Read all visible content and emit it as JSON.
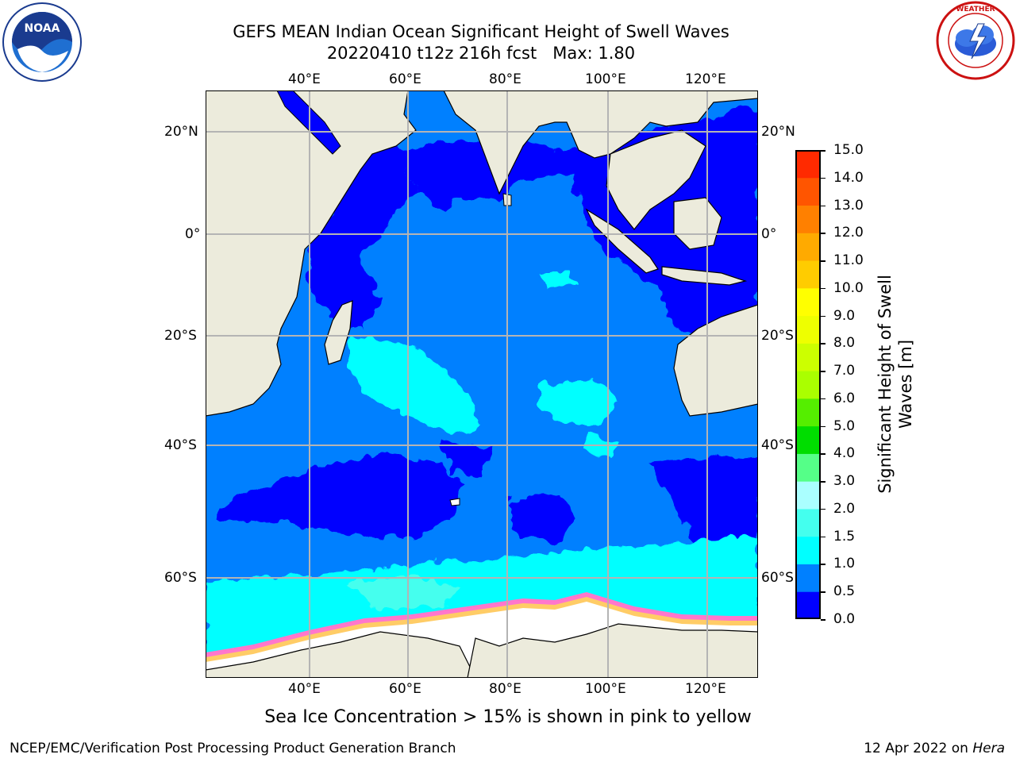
{
  "header": {
    "title_line1": "GEFS MEAN Indian Ocean Significant Height of Swell Waves",
    "title_line2": "20220410 t12z 216h fcst   Max: 1.80"
  },
  "map": {
    "lon_ticks": [
      "40°E",
      "60°E",
      "80°E",
      "100°E",
      "120°E"
    ],
    "lat_ticks": [
      "20°N",
      "0°",
      "20°S",
      "40°S",
      "60°S"
    ],
    "lon_range": [
      20,
      130
    ],
    "lat_range": [
      -74,
      28
    ],
    "colors": {
      "land": "#ecebdc",
      "grid": "#b4b4b4",
      "sea_ice_white": "#ffffff",
      "sea_ice_edge": [
        "#ff66cc",
        "#ff99dd",
        "#ffcc55"
      ]
    }
  },
  "colorbar": {
    "title_line1": "Significant Height of Swell",
    "title_line2": "Waves [m]",
    "levels": [
      "0.0",
      "0.5",
      "1.0",
      "1.5",
      "2.0",
      "3.0",
      "4.0",
      "5.0",
      "6.0",
      "7.0",
      "8.0",
      "9.0",
      "10.0",
      "11.0",
      "12.0",
      "13.0",
      "14.0",
      "15.0"
    ],
    "colors": [
      "#0000ff",
      "#0080ff",
      "#00ffff",
      "#44ffee",
      "#aaffff",
      "#55ff88",
      "#00dd00",
      "#55ee00",
      "#aaff00",
      "#ccff00",
      "#eeff00",
      "#ffff00",
      "#ffcc00",
      "#ffaa00",
      "#ff8000",
      "#ff5500",
      "#ff2a00"
    ]
  },
  "note": "Sea Ice Concentration > 15% is shown in pink to yellow",
  "footer": {
    "left": "NCEP/EMC/Verification Post Processing Product Generation Branch",
    "right_date": "12 Apr 2022 on ",
    "right_host": "Hera"
  },
  "logos": {
    "left": "noaa-logo",
    "left_text": "NOAA",
    "right": "nws-logo",
    "right_text": "NATIONAL WEATHER SERVICE"
  }
}
